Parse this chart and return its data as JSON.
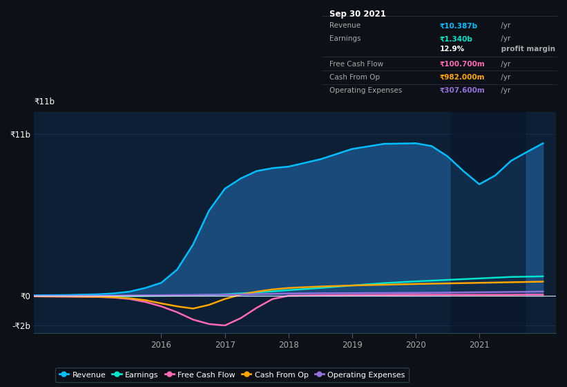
{
  "bg_color": "#0d1117",
  "plot_bg_color": "#0d1f35",
  "years": [
    2014.0,
    2014.5,
    2015.0,
    2015.25,
    2015.5,
    2015.75,
    2016.0,
    2016.25,
    2016.5,
    2016.75,
    2017.0,
    2017.25,
    2017.5,
    2017.75,
    2018.0,
    2018.5,
    2019.0,
    2019.5,
    2020.0,
    2020.25,
    2020.5,
    2020.75,
    2021.0,
    2021.25,
    2021.5,
    2021.75,
    2022.0
  ],
  "revenue": [
    0.05,
    0.07,
    0.12,
    0.18,
    0.3,
    0.55,
    0.9,
    1.8,
    3.5,
    5.8,
    7.3,
    8.0,
    8.5,
    8.7,
    8.8,
    9.3,
    10.0,
    10.35,
    10.387,
    10.2,
    9.5,
    8.5,
    7.6,
    8.2,
    9.2,
    9.8,
    10.387
  ],
  "earnings": [
    0.0,
    0.0,
    0.0,
    0.0,
    0.0,
    0.01,
    0.02,
    0.03,
    0.05,
    0.08,
    0.12,
    0.18,
    0.25,
    0.32,
    0.4,
    0.55,
    0.72,
    0.88,
    1.0,
    1.05,
    1.1,
    1.15,
    1.2,
    1.25,
    1.3,
    1.32,
    1.34
  ],
  "free_cash_flow": [
    -0.02,
    -0.04,
    -0.06,
    -0.1,
    -0.2,
    -0.4,
    -0.7,
    -1.1,
    -1.6,
    -1.9,
    -2.0,
    -1.5,
    -0.8,
    -0.2,
    0.02,
    0.05,
    0.07,
    0.08,
    0.09,
    0.09,
    0.09,
    0.09,
    0.09,
    0.09,
    0.09,
    0.1,
    0.1
  ],
  "cash_from_op": [
    -0.02,
    -0.03,
    -0.05,
    -0.08,
    -0.15,
    -0.28,
    -0.5,
    -0.7,
    -0.85,
    -0.6,
    -0.2,
    0.1,
    0.3,
    0.45,
    0.55,
    0.65,
    0.72,
    0.77,
    0.82,
    0.84,
    0.86,
    0.88,
    0.9,
    0.92,
    0.94,
    0.96,
    0.982
  ],
  "operating_expenses": [
    0.01,
    0.01,
    0.02,
    0.03,
    0.04,
    0.05,
    0.06,
    0.07,
    0.08,
    0.09,
    0.1,
    0.11,
    0.13,
    0.15,
    0.17,
    0.19,
    0.2,
    0.21,
    0.22,
    0.23,
    0.24,
    0.25,
    0.26,
    0.27,
    0.28,
    0.29,
    0.308
  ],
  "revenue_color": "#00bfff",
  "earnings_color": "#00e5cc",
  "fcf_color": "#ff69b4",
  "cashop_color": "#ffa500",
  "opex_color": "#9370db",
  "revenue_fill_color": "#1a4a7a",
  "ylim": [
    -2.5,
    12.5
  ],
  "xlim": [
    2014.0,
    2022.2
  ],
  "ytick_vals": [
    -2,
    0,
    11
  ],
  "ytick_labels": [
    "-₹2b",
    "₹0",
    "₹11b"
  ],
  "xtick_years": [
    2016,
    2017,
    2018,
    2019,
    2020,
    2021
  ],
  "tooltip": {
    "date": "Sep 30 2021",
    "rows": [
      {
        "label": "Revenue",
        "value": "₹10.387b",
        "suffix": " /yr",
        "vcolor": "#00bfff",
        "divider_after": false
      },
      {
        "label": "Earnings",
        "value": "₹1.340b",
        "suffix": " /yr",
        "vcolor": "#00e5cc",
        "divider_after": false
      },
      {
        "label": "",
        "value": "12.9%",
        "suffix": " profit margin",
        "vcolor": "#ffffff",
        "bold": true,
        "divider_after": true
      },
      {
        "label": "Free Cash Flow",
        "value": "₹100.700m",
        "suffix": " /yr",
        "vcolor": "#ff69b4",
        "divider_after": true
      },
      {
        "label": "Cash From Op",
        "value": "₹982.000m",
        "suffix": " /yr",
        "vcolor": "#ffa500",
        "divider_after": true
      },
      {
        "label": "Operating Expenses",
        "value": "₹307.600m",
        "suffix": " /yr",
        "vcolor": "#9370db",
        "divider_after": false
      }
    ]
  },
  "legend_items": [
    {
      "label": "Revenue",
      "color": "#00bfff"
    },
    {
      "label": "Earnings",
      "color": "#00e5cc"
    },
    {
      "label": "Free Cash Flow",
      "color": "#ff69b4"
    },
    {
      "label": "Cash From Op",
      "color": "#ffa500"
    },
    {
      "label": "Operating Expenses",
      "color": "#9370db"
    }
  ]
}
